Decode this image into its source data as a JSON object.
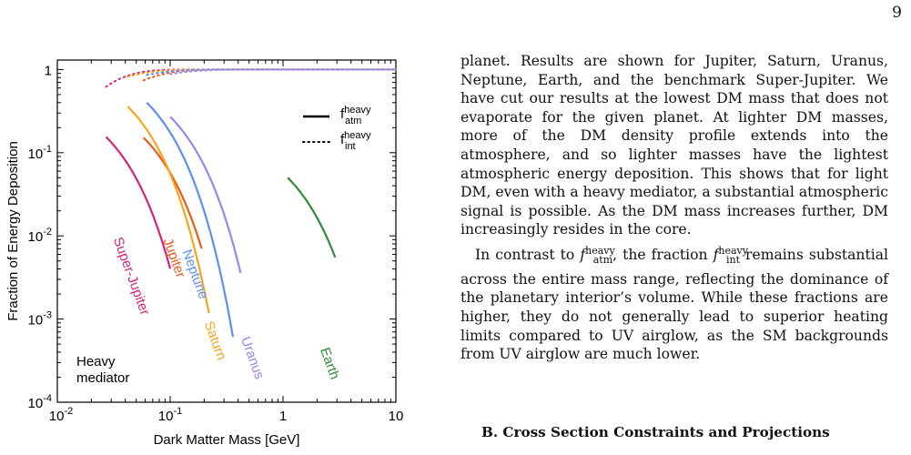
{
  "page": {
    "number": "9"
  },
  "chart_data": {
    "type": "line",
    "xlabel": "Dark Matter Mass [GeV]",
    "ylabel": "Fraction of Energy Deposition",
    "xscale": "log",
    "yscale": "log",
    "xlim": [
      0.01,
      10
    ],
    "ylim": [
      0.0001,
      1.3
    ],
    "x_ticks": [
      "10^-2",
      "10^-1",
      "1",
      "10"
    ],
    "y_ticks": [
      "10^-4",
      "10^-3",
      "10^-2",
      "10^-1",
      "1"
    ],
    "legend": {
      "position": "top-right",
      "entries": [
        {
          "label": "f_atm^heavy",
          "style": "solid"
        },
        {
          "label": "f_int^heavy",
          "style": "dotted"
        }
      ]
    },
    "annotation": "Heavy mediator",
    "series": [
      {
        "name": "Super-Jupiter",
        "color": "#d6237a",
        "atm": {
          "x0": 0.027,
          "f0": 0.155,
          "x1": 0.1
        },
        "int_start": 0.62
      },
      {
        "name": "Jupiter",
        "color": "#ee5a14",
        "atm": {
          "x0": 0.058,
          "f0": 0.152,
          "x1": 0.19
        },
        "int_start": 0.74
      },
      {
        "name": "Saturn",
        "color": "#f8a51c",
        "atm": {
          "x0": 0.042,
          "f0": 0.36,
          "x1": 0.22
        },
        "int_start": 0.82
      },
      {
        "name": "Neptune",
        "color": "#5e8ef5",
        "atm": {
          "x0": 0.062,
          "f0": 0.4,
          "x1": 0.36
        },
        "int_start": 0.86
      },
      {
        "name": "Uranus",
        "color": "#9f83ea",
        "atm": {
          "x0": 0.1,
          "f0": 0.27,
          "x1": 0.42
        },
        "int_start": 0.88
      },
      {
        "name": "Earth",
        "color": "#2f8a3a",
        "atm": {
          "x0": 1.1,
          "f0": 0.05,
          "x1": 2.9
        },
        "int_start": null
      }
    ]
  },
  "body": {
    "paragraph1": "planet. Results are shown for Jupiter, Saturn, Uranus, Neptune, Earth, and the benchmark Super-Jupiter. We have cut our results at the lowest DM mass that does not evaporate for the given planet. At lighter DM masses, more of the DM density profile extends into the atmosphere, and so lighter masses have the lightest atmospheric energy deposition. This shows that for light DM, even with a heavy mediator, a substantial atmospheric signal is possible. As the DM mass increases further, DM increasingly resides in the core.",
    "paragraph2_a": "In contrast to ",
    "f_atm": "f",
    "f_atm_sup": "heavy",
    "f_atm_sub": "atm",
    "paragraph2_b": ", the fraction ",
    "f_int": "f",
    "f_int_sup": "heavy",
    "f_int_sub": "int",
    "paragraph2_c": " remains substantial across the entire mass range, reflecting the dominance of the planetary interior’s volume. While these fractions are higher, they do not generally lead to superior heating limits compared to UV airglow, as the SM backgrounds from UV airglow are much lower.",
    "section_heading": "B.   Cross Section Constraints and Projections"
  }
}
